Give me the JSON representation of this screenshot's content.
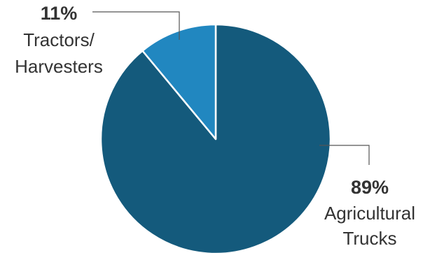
{
  "chart_data": {
    "type": "pie",
    "slices": [
      {
        "label_lines": [
          "Agricultural",
          "Trucks"
        ],
        "percent_label": "89%",
        "value": 89,
        "color": "#145a7c"
      },
      {
        "label_lines": [
          "Tractors/",
          "Harvesters"
        ],
        "percent_label": "11%",
        "value": 11,
        "color": "#2187c0"
      }
    ],
    "start_angle_deg": 0,
    "direction": "clockwise",
    "slice_border_color": "#ffffff",
    "leader_line_color": "#555555",
    "label_text_color": "#333333"
  }
}
